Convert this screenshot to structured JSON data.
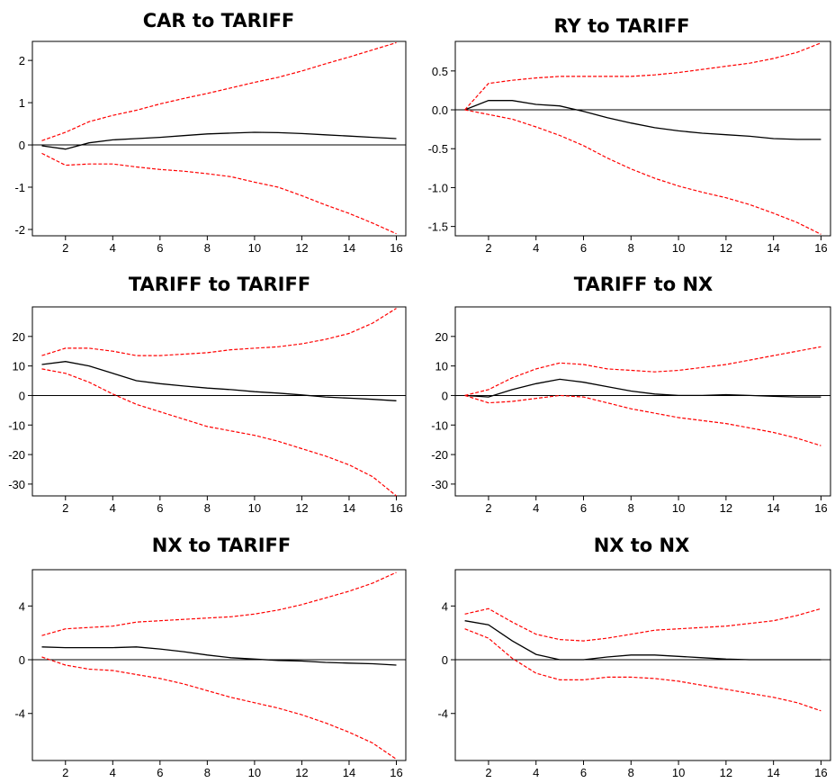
{
  "chart_data": [
    {
      "type": "line",
      "title": "CAR to TARIFF",
      "x": [
        1,
        2,
        3,
        4,
        5,
        6,
        7,
        8,
        9,
        10,
        11,
        12,
        13,
        14,
        15,
        16
      ],
      "xticks": [
        2,
        4,
        6,
        8,
        10,
        12,
        14,
        16
      ],
      "yticks": [
        -2,
        -1,
        0,
        1,
        2
      ],
      "ylim": [
        -2.15,
        2.45
      ],
      "zero_line": true,
      "series": [
        {
          "role": "response",
          "color": "#000000",
          "dashed": false,
          "values": [
            -0.02,
            -0.1,
            0.05,
            0.12,
            0.15,
            0.18,
            0.22,
            0.26,
            0.28,
            0.3,
            0.29,
            0.27,
            0.24,
            0.21,
            0.18,
            0.15
          ]
        },
        {
          "role": "upper",
          "color": "#ff0000",
          "dashed": true,
          "values": [
            0.1,
            0.3,
            0.55,
            0.7,
            0.82,
            0.97,
            1.1,
            1.22,
            1.35,
            1.48,
            1.6,
            1.75,
            1.92,
            2.08,
            2.25,
            2.42
          ]
        },
        {
          "role": "lower",
          "color": "#ff0000",
          "dashed": true,
          "values": [
            -0.2,
            -0.48,
            -0.45,
            -0.45,
            -0.52,
            -0.58,
            -0.62,
            -0.68,
            -0.75,
            -0.88,
            -1.0,
            -1.2,
            -1.42,
            -1.62,
            -1.85,
            -2.1
          ]
        }
      ]
    },
    {
      "type": "line",
      "title": "RY to TARIFF",
      "x": [
        1,
        2,
        3,
        4,
        5,
        6,
        7,
        8,
        9,
        10,
        11,
        12,
        13,
        14,
        15,
        16
      ],
      "xticks": [
        2,
        4,
        6,
        8,
        10,
        12,
        14,
        16
      ],
      "yticks": [
        0.5,
        0.0,
        -0.5,
        -1.0,
        -1.5
      ],
      "ytick_labels": [
        "0.5",
        "0.0",
        "-0.5",
        "-1.0",
        "-1.5"
      ],
      "ylim": [
        -1.62,
        0.88
      ],
      "zero_line": true,
      "series": [
        {
          "role": "response",
          "color": "#000000",
          "dashed": false,
          "values": [
            0.0,
            0.12,
            0.12,
            0.07,
            0.05,
            -0.02,
            -0.1,
            -0.17,
            -0.23,
            -0.27,
            -0.3,
            -0.32,
            -0.34,
            -0.37,
            -0.38,
            -0.38
          ]
        },
        {
          "role": "upper",
          "color": "#ff0000",
          "dashed": true,
          "values": [
            0.0,
            0.34,
            0.38,
            0.41,
            0.43,
            0.43,
            0.43,
            0.43,
            0.45,
            0.48,
            0.52,
            0.56,
            0.6,
            0.66,
            0.74,
            0.86
          ]
        },
        {
          "role": "lower",
          "color": "#ff0000",
          "dashed": true,
          "values": [
            0.0,
            -0.06,
            -0.12,
            -0.22,
            -0.33,
            -0.46,
            -0.62,
            -0.76,
            -0.88,
            -0.98,
            -1.06,
            -1.13,
            -1.22,
            -1.33,
            -1.45,
            -1.6
          ]
        }
      ]
    },
    {
      "type": "line",
      "title": "TARIFF to TARIFF",
      "x": [
        1,
        2,
        3,
        4,
        5,
        6,
        7,
        8,
        9,
        10,
        11,
        12,
        13,
        14,
        15,
        16
      ],
      "xticks": [
        2,
        4,
        6,
        8,
        10,
        12,
        14,
        16
      ],
      "yticks": [
        20,
        10,
        0,
        -10,
        -20,
        -30
      ],
      "ylim": [
        -34,
        30
      ],
      "zero_line": true,
      "series": [
        {
          "role": "response",
          "color": "#000000",
          "dashed": false,
          "values": [
            10.5,
            11.5,
            10.0,
            7.5,
            5.0,
            4.0,
            3.2,
            2.5,
            2.0,
            1.3,
            0.8,
            0.2,
            -0.5,
            -0.9,
            -1.3,
            -1.8
          ]
        },
        {
          "role": "upper",
          "color": "#ff0000",
          "dashed": true,
          "values": [
            13.5,
            16.0,
            16.0,
            15.0,
            13.5,
            13.5,
            14.0,
            14.5,
            15.5,
            16.0,
            16.5,
            17.5,
            19.0,
            21.0,
            24.5,
            29.5
          ]
        },
        {
          "role": "lower",
          "color": "#ff0000",
          "dashed": true,
          "values": [
            9.0,
            7.5,
            4.5,
            0.5,
            -3.0,
            -5.5,
            -8.0,
            -10.5,
            -12.0,
            -13.5,
            -15.5,
            -18.0,
            -20.5,
            -23.5,
            -27.5,
            -34.0
          ]
        }
      ]
    },
    {
      "type": "line",
      "title": "TARIFF to NX",
      "x": [
        1,
        2,
        3,
        4,
        5,
        6,
        7,
        8,
        9,
        10,
        11,
        12,
        13,
        14,
        15,
        16
      ],
      "xticks": [
        2,
        4,
        6,
        8,
        10,
        12,
        14,
        16
      ],
      "yticks": [
        20,
        10,
        0,
        -10,
        -20,
        -30
      ],
      "ylim": [
        -34,
        30
      ],
      "zero_line": true,
      "series": [
        {
          "role": "response",
          "color": "#000000",
          "dashed": false,
          "values": [
            0.0,
            -0.5,
            2.0,
            4.0,
            5.5,
            4.5,
            3.0,
            1.5,
            0.5,
            0.0,
            0.0,
            0.3,
            0.0,
            -0.3,
            -0.5,
            -0.5
          ]
        },
        {
          "role": "upper",
          "color": "#ff0000",
          "dashed": true,
          "values": [
            0.0,
            2.0,
            6.0,
            9.0,
            11.0,
            10.5,
            9.0,
            8.5,
            8.0,
            8.5,
            9.5,
            10.5,
            12.0,
            13.5,
            15.0,
            16.5
          ]
        },
        {
          "role": "lower",
          "color": "#ff0000",
          "dashed": true,
          "values": [
            0.0,
            -2.5,
            -2.0,
            -1.0,
            0.0,
            -0.5,
            -2.5,
            -4.5,
            -6.0,
            -7.5,
            -8.5,
            -9.5,
            -11.0,
            -12.5,
            -14.5,
            -17.0
          ]
        }
      ]
    },
    {
      "type": "line",
      "title": "NX to TARIFF",
      "x": [
        1,
        2,
        3,
        4,
        5,
        6,
        7,
        8,
        9,
        10,
        11,
        12,
        13,
        14,
        15,
        16
      ],
      "xticks": [
        2,
        4,
        6,
        8,
        10,
        12,
        14,
        16
      ],
      "yticks": [
        4,
        0,
        -4
      ],
      "ylim": [
        -7.5,
        6.7
      ],
      "zero_line": true,
      "series": [
        {
          "role": "response",
          "color": "#000000",
          "dashed": false,
          "values": [
            0.95,
            0.9,
            0.9,
            0.9,
            0.95,
            0.8,
            0.6,
            0.35,
            0.15,
            0.05,
            -0.05,
            -0.1,
            -0.2,
            -0.25,
            -0.3,
            -0.4
          ]
        },
        {
          "role": "upper",
          "color": "#ff0000",
          "dashed": true,
          "values": [
            1.8,
            2.3,
            2.4,
            2.5,
            2.8,
            2.9,
            3.0,
            3.1,
            3.2,
            3.4,
            3.7,
            4.1,
            4.6,
            5.1,
            5.7,
            6.5
          ]
        },
        {
          "role": "lower",
          "color": "#ff0000",
          "dashed": true,
          "values": [
            0.2,
            -0.4,
            -0.7,
            -0.8,
            -1.1,
            -1.4,
            -1.8,
            -2.3,
            -2.8,
            -3.2,
            -3.6,
            -4.1,
            -4.7,
            -5.4,
            -6.2,
            -7.4
          ]
        }
      ]
    },
    {
      "type": "line",
      "title": "NX to NX",
      "x": [
        1,
        2,
        3,
        4,
        5,
        6,
        7,
        8,
        9,
        10,
        11,
        12,
        13,
        14,
        15,
        16
      ],
      "xticks": [
        2,
        4,
        6,
        8,
        10,
        12,
        14,
        16
      ],
      "yticks": [
        4,
        0,
        -4
      ],
      "ylim": [
        -7.5,
        6.7
      ],
      "zero_line": true,
      "series": [
        {
          "role": "response",
          "color": "#000000",
          "dashed": false,
          "values": [
            2.9,
            2.6,
            1.4,
            0.4,
            0.0,
            0.0,
            0.2,
            0.35,
            0.35,
            0.25,
            0.15,
            0.05,
            0.0,
            0.0,
            0.0,
            0.0
          ]
        },
        {
          "role": "upper",
          "color": "#ff0000",
          "dashed": true,
          "values": [
            3.4,
            3.8,
            2.8,
            1.9,
            1.5,
            1.4,
            1.6,
            1.9,
            2.2,
            2.3,
            2.4,
            2.5,
            2.7,
            2.9,
            3.3,
            3.8
          ]
        },
        {
          "role": "lower",
          "color": "#ff0000",
          "dashed": true,
          "values": [
            2.3,
            1.6,
            0.1,
            -1.0,
            -1.5,
            -1.5,
            -1.3,
            -1.3,
            -1.4,
            -1.6,
            -1.9,
            -2.2,
            -2.5,
            -2.8,
            -3.2,
            -3.8
          ]
        }
      ]
    }
  ]
}
